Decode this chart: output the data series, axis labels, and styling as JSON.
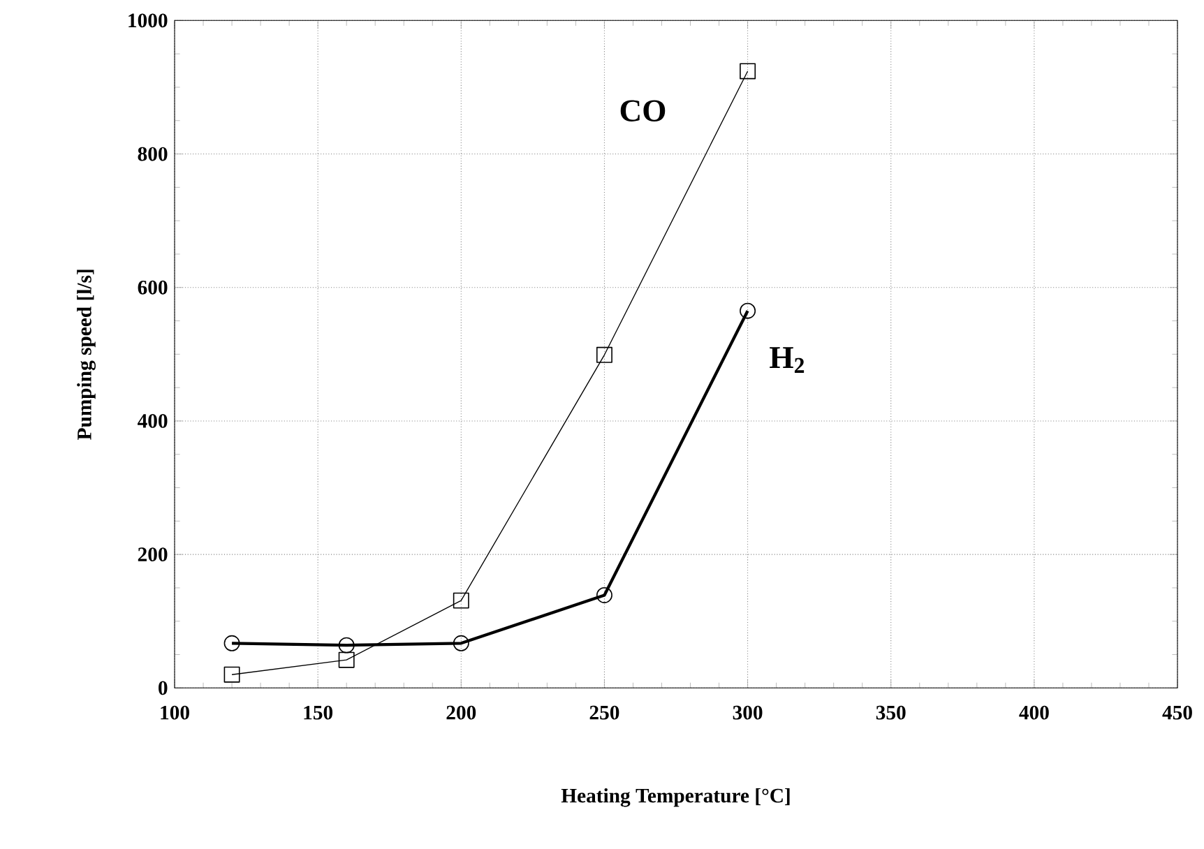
{
  "chart_data": {
    "type": "line",
    "xlabel": "Heating Temperature [°C]",
    "ylabel": "Pumping speed [l/s]",
    "x": [
      120,
      160,
      200,
      250,
      300
    ],
    "series": [
      {
        "name": "CO",
        "color": "#000000",
        "marker": "square",
        "values": [
          20,
          42,
          131,
          499,
          924
        ]
      },
      {
        "name": "H$_{2}$",
        "color": "#000000",
        "marker": "circle",
        "values": [
          67,
          64,
          67,
          139,
          565
        ]
      }
    ],
    "xlim": [
      100,
      450
    ],
    "xticks": [
      100,
      150,
      200,
      250,
      300,
      350,
      400,
      450
    ],
    "ylim": [
      0,
      1000
    ],
    "yticks": [
      0,
      200,
      400,
      600,
      800,
      1000
    ],
    "grid": true,
    "legend": false,
    "line_style": "solid"
  }
}
